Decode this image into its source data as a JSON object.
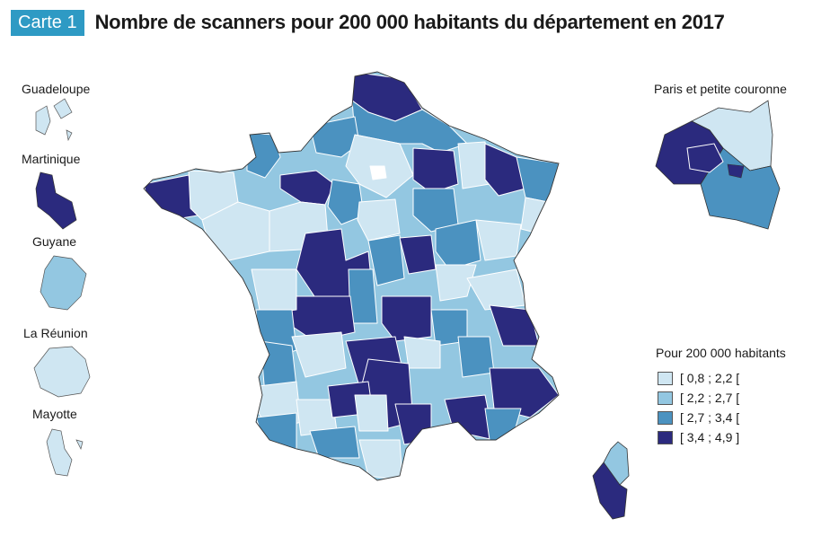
{
  "header": {
    "badge": "Carte 1",
    "title": "Nombre de scanners pour 200 000 habitants du département en 2017"
  },
  "insets": {
    "guadeloupe": "Guadeloupe",
    "martinique": "Martinique",
    "guyane": "Guyane",
    "reunion": "La Réunion",
    "mayotte": "Mayotte",
    "paris": "Paris et petite couronne"
  },
  "legend": {
    "title": "Pour 200 000 habitants",
    "classes": [
      {
        "label": "[ 0,8 ; 2,2 [",
        "color": "#cfe6f2"
      },
      {
        "label": "[ 2,2 ; 2,7 [",
        "color": "#93c7e1"
      },
      {
        "label": "[ 2,7 ; 3,4 [",
        "color": "#4b92c0"
      },
      {
        "label": "[ 3,4 ; 4,9 ]",
        "color": "#2b2a7e"
      }
    ],
    "no_data_color": "#ffffff"
  }
}
